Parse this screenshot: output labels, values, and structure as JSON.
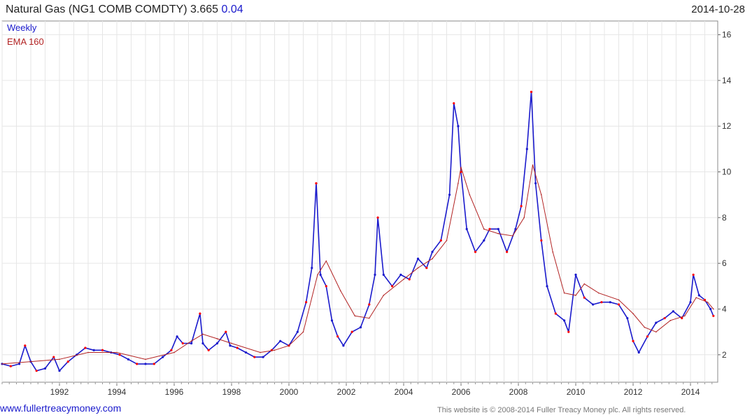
{
  "header": {
    "title": "Natural Gas (NG1 COMB COMDTY) 3.665",
    "change": "0.04",
    "date": "2014-10-28"
  },
  "footer": {
    "site": "www.fullertreacymoney.com",
    "copyright": "This website is © 2008-2014 Fuller Treacy Money plc. All rights reserved."
  },
  "colors": {
    "weekly": "#1a1acc",
    "ema": "#b22222",
    "peaks": "#ff0000",
    "grid": "#e6e6e6"
  },
  "chart_data": {
    "type": "line",
    "title": "Natural Gas (NG1 COMB COMDTY) 3.665",
    "xlabel": "",
    "ylabel": "",
    "xlim": [
      1990.0,
      2014.95
    ],
    "ylim": [
      0.8,
      16.6
    ],
    "x_ticks": [
      "1992",
      "1994",
      "1996",
      "1998",
      "2000",
      "2002",
      "2004",
      "2006",
      "2008",
      "2010",
      "2012",
      "2014"
    ],
    "y_ticks": [
      2,
      4,
      6,
      8,
      10,
      12,
      14,
      16
    ],
    "grid": true,
    "legend_position": "top-left",
    "series": [
      {
        "name": "Weekly",
        "x": [
          1990.0,
          1990.3,
          1990.6,
          1990.8,
          1991.0,
          1991.2,
          1991.5,
          1991.8,
          1992.0,
          1992.3,
          1992.6,
          1992.9,
          1993.2,
          1993.5,
          1993.8,
          1994.1,
          1994.4,
          1994.7,
          1995.0,
          1995.3,
          1995.6,
          1995.9,
          1996.1,
          1996.3,
          1996.6,
          1996.9,
          1997.0,
          1997.2,
          1997.5,
          1997.8,
          1997.95,
          1998.2,
          1998.5,
          1998.8,
          1999.1,
          1999.4,
          1999.7,
          2000.0,
          2000.3,
          2000.6,
          2000.8,
          2000.95,
          2001.1,
          2001.3,
          2001.5,
          2001.7,
          2001.9,
          2002.2,
          2002.5,
          2002.8,
          2003.0,
          2003.1,
          2003.3,
          2003.6,
          2003.9,
          2004.2,
          2004.5,
          2004.8,
          2005.0,
          2005.3,
          2005.6,
          2005.75,
          2005.9,
          2006.0,
          2006.2,
          2006.5,
          2006.8,
          2007.0,
          2007.3,
          2007.6,
          2007.9,
          2008.1,
          2008.3,
          2008.45,
          2008.6,
          2008.8,
          2009.0,
          2009.3,
          2009.6,
          2009.75,
          2010.0,
          2010.3,
          2010.6,
          2010.9,
          2011.2,
          2011.5,
          2011.8,
          2012.0,
          2012.2,
          2012.5,
          2012.8,
          2013.1,
          2013.4,
          2013.7,
          2014.0,
          2014.1,
          2014.3,
          2014.5,
          2014.7,
          2014.8
        ],
        "values": [
          1.6,
          1.5,
          1.6,
          2.4,
          1.7,
          1.3,
          1.4,
          1.9,
          1.3,
          1.7,
          2.0,
          2.3,
          2.2,
          2.2,
          2.1,
          2.0,
          1.8,
          1.6,
          1.6,
          1.6,
          1.9,
          2.2,
          2.8,
          2.5,
          2.5,
          3.8,
          2.5,
          2.2,
          2.5,
          3.0,
          2.4,
          2.3,
          2.1,
          1.9,
          1.9,
          2.2,
          2.6,
          2.4,
          3.0,
          4.3,
          5.8,
          9.5,
          5.5,
          5.0,
          3.5,
          2.8,
          2.4,
          3.0,
          3.2,
          4.2,
          5.5,
          8.0,
          5.5,
          5.0,
          5.5,
          5.3,
          6.2,
          5.8,
          6.5,
          7.0,
          9.0,
          13.0,
          12.0,
          10.0,
          7.5,
          6.5,
          7.0,
          7.5,
          7.5,
          6.5,
          7.5,
          8.5,
          11.0,
          13.5,
          9.5,
          7.0,
          5.0,
          3.8,
          3.5,
          3.0,
          5.5,
          4.5,
          4.2,
          4.3,
          4.3,
          4.2,
          3.6,
          2.6,
          2.1,
          2.8,
          3.4,
          3.6,
          3.9,
          3.6,
          4.3,
          5.5,
          4.6,
          4.4,
          4.0,
          3.7
        ]
      },
      {
        "name": "EMA 160",
        "x": [
          1990.0,
          1991.0,
          1992.0,
          1993.0,
          1994.0,
          1995.0,
          1996.0,
          1996.6,
          1997.0,
          1997.5,
          1998.0,
          1999.0,
          1999.5,
          2000.0,
          2000.5,
          2001.0,
          2001.3,
          2001.8,
          2002.3,
          2002.8,
          2003.3,
          2004.0,
          2004.5,
          2005.0,
          2005.5,
          2005.9,
          2006.0,
          2006.3,
          2006.8,
          2007.3,
          2007.8,
          2008.2,
          2008.5,
          2008.8,
          2009.2,
          2009.6,
          2010.0,
          2010.3,
          2010.8,
          2011.5,
          2012.0,
          2012.4,
          2012.8,
          2013.3,
          2013.8,
          2014.2,
          2014.6,
          2014.8
        ],
        "values": [
          1.6,
          1.7,
          1.8,
          2.1,
          2.1,
          1.8,
          2.1,
          2.6,
          2.9,
          2.7,
          2.5,
          2.1,
          2.2,
          2.4,
          3.0,
          5.5,
          6.1,
          4.8,
          3.7,
          3.6,
          4.6,
          5.3,
          5.8,
          6.2,
          7.0,
          9.5,
          10.2,
          9.0,
          7.5,
          7.3,
          7.2,
          8.0,
          10.3,
          9.0,
          6.5,
          4.7,
          4.6,
          5.1,
          4.7,
          4.4,
          3.8,
          3.2,
          3.0,
          3.5,
          3.7,
          4.5,
          4.3,
          4.0
        ]
      }
    ]
  }
}
